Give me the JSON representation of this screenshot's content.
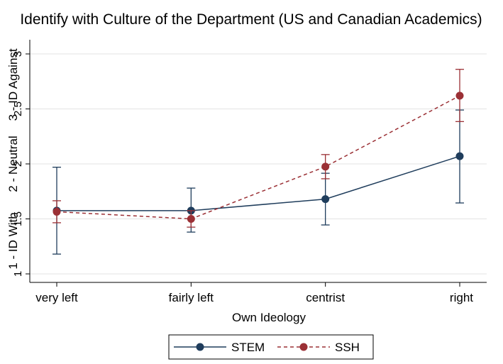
{
  "chart_data": {
    "type": "line",
    "title": "Identify with Culture of the Department (US and Canadian Academics)",
    "xlabel": "Own Ideology",
    "categories": [
      "very left",
      "fairly left",
      "centrist",
      "right"
    ],
    "ylim": [
      1,
      3
    ],
    "yticks": [
      "1",
      "1.5",
      "2",
      "2.5",
      "3"
    ],
    "ytick_values": [
      1,
      1.5,
      2,
      2.5,
      3
    ],
    "ycategory_labels": [
      {
        "label": "1 - ID With",
        "value": 1.3
      },
      {
        "label": "2 - Neutral",
        "value": 2.0
      },
      {
        "label": "3 - ID Against",
        "value": 2.72
      }
    ],
    "grid": true,
    "legend_position": "bottom",
    "series": [
      {
        "name": "STEM",
        "color": "#1f3d5c",
        "line_style": "solid",
        "values": [
          1.575,
          1.575,
          1.68,
          2.07
        ],
        "ci_low": [
          1.18,
          1.38,
          1.445,
          1.645
        ],
        "ci_high": [
          1.97,
          1.78,
          1.915,
          2.49
        ]
      },
      {
        "name": "SSH",
        "color": "#9b3035",
        "line_style": "dashed",
        "values": [
          1.565,
          1.5,
          1.975,
          2.62
        ],
        "ci_low": [
          1.465,
          1.425,
          1.865,
          2.385
        ],
        "ci_high": [
          1.665,
          1.575,
          2.085,
          2.86
        ]
      }
    ]
  }
}
